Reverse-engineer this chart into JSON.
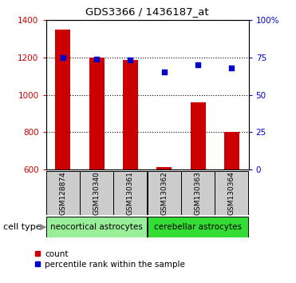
{
  "title": "GDS3366 / 1436187_at",
  "samples": [
    "GSM128874",
    "GSM130340",
    "GSM130361",
    "GSM130362",
    "GSM130363",
    "GSM130364"
  ],
  "count_values": [
    1350,
    1200,
    1185,
    615,
    960,
    800
  ],
  "percentile_values": [
    75,
    74,
    73,
    65,
    70,
    68
  ],
  "ylim_left": [
    600,
    1400
  ],
  "ylim_right": [
    0,
    100
  ],
  "yticks_left": [
    600,
    800,
    1000,
    1200,
    1400
  ],
  "yticks_right": [
    0,
    25,
    50,
    75,
    100
  ],
  "bar_color": "#cc0000",
  "dot_color": "#0000cc",
  "bar_base": 600,
  "cell_types": [
    {
      "label": "neocortical astrocytes",
      "color": "#88ee88"
    },
    {
      "label": "cerebellar astrocytes",
      "color": "#33ee33"
    }
  ],
  "cell_type_label": "cell type",
  "legend_count_label": "count",
  "legend_percentile_label": "percentile rank within the sample",
  "tick_label_color_left": "#cc0000",
  "tick_label_color_right": "#0000cc",
  "xtick_bg_color": "#cccccc",
  "neo_color": "#99ee99",
  "cer_color": "#33dd33"
}
